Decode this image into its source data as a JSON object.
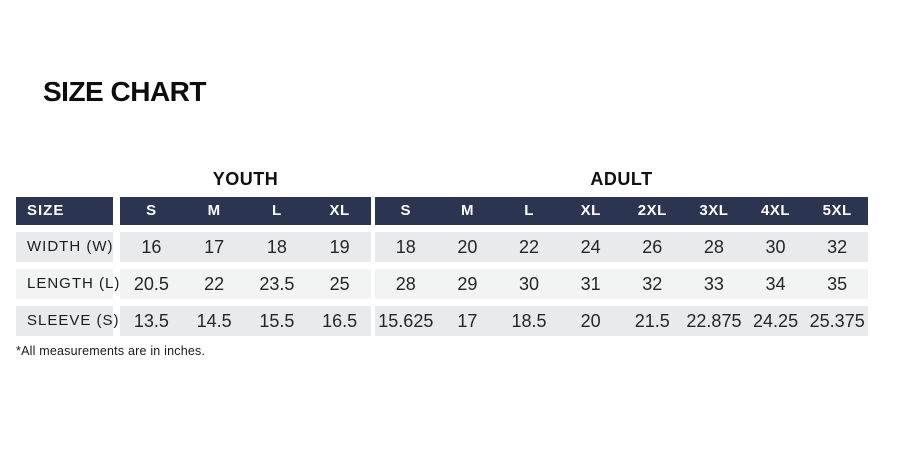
{
  "colors": {
    "header_bg": "#2b3450",
    "header_text": "#ffffff",
    "row_shade_dark": "#e8eaeb",
    "row_shade_light": "#f2f3f3",
    "title_text": "#0d0d0d"
  },
  "chart_data": {
    "type": "table",
    "title": "SIZE CHART",
    "corner_label": "SIZE",
    "groups": [
      {
        "name": "YOUTH",
        "columns": [
          "S",
          "M",
          "L",
          "XL"
        ]
      },
      {
        "name": "ADULT",
        "columns": [
          "S",
          "M",
          "L",
          "XL",
          "2XL",
          "3XL",
          "4XL",
          "5XL"
        ]
      }
    ],
    "rows": [
      {
        "label": "WIDTH (W)",
        "youth": [
          "16",
          "17",
          "18",
          "19"
        ],
        "adult": [
          "18",
          "20",
          "22",
          "24",
          "26",
          "28",
          "30",
          "32"
        ]
      },
      {
        "label": "LENGTH (L)",
        "youth": [
          "20.5",
          "22",
          "23.5",
          "25"
        ],
        "adult": [
          "28",
          "29",
          "30",
          "31",
          "32",
          "33",
          "34",
          "35"
        ]
      },
      {
        "label": "SLEEVE (S)",
        "youth": [
          "13.5",
          "14.5",
          "15.5",
          "16.5"
        ],
        "adult": [
          "15.625",
          "17",
          "18.5",
          "20",
          "21.5",
          "22.875",
          "24.25",
          "25.375"
        ]
      }
    ],
    "footnote": "*All measurements are in inches.",
    "units": "inches"
  }
}
